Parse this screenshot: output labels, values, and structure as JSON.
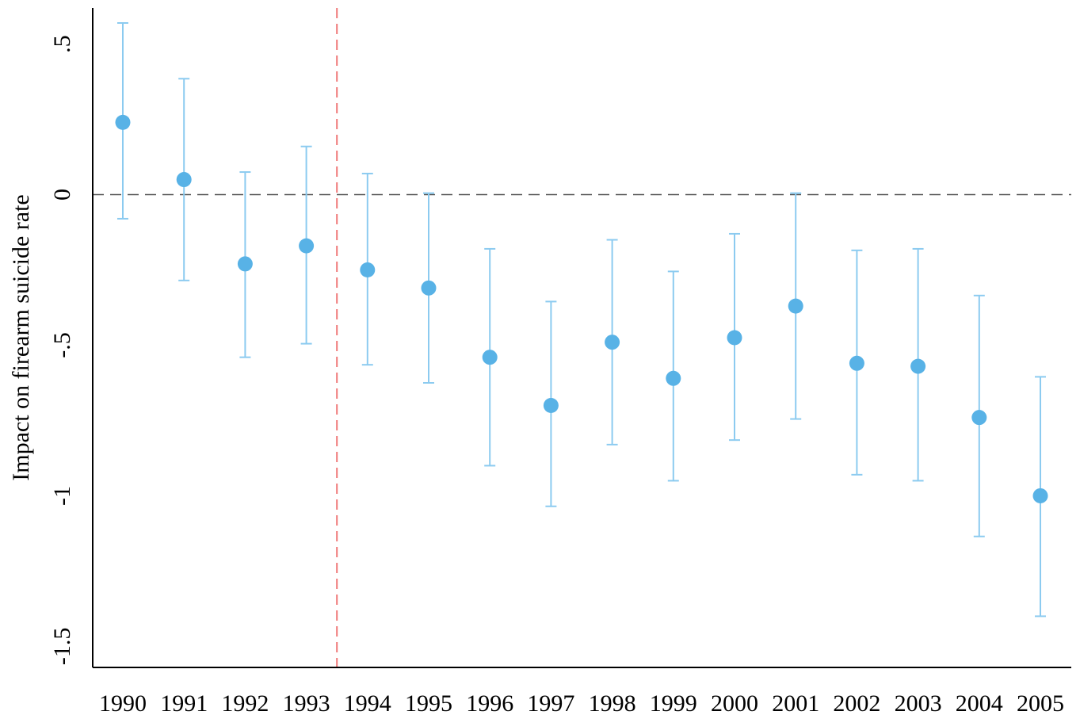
{
  "chart_data": {
    "type": "scatter",
    "title": "",
    "xlabel": "",
    "ylabel": "Impact on firearm suicide rate",
    "categories": [
      "1990",
      "1991",
      "1992",
      "1993",
      "1994",
      "1995",
      "1996",
      "1997",
      "1998",
      "1999",
      "2000",
      "2001",
      "2002",
      "2003",
      "2004",
      "2005"
    ],
    "values": [
      0.24,
      0.05,
      -0.23,
      -0.17,
      -0.25,
      -0.31,
      -0.54,
      -0.7,
      -0.49,
      -0.61,
      -0.475,
      -0.37,
      -0.56,
      -0.57,
      -0.74,
      -1.0
    ],
    "ci_low": [
      -0.08,
      -0.285,
      -0.54,
      -0.495,
      -0.565,
      -0.625,
      -0.9,
      -1.035,
      -0.83,
      -0.95,
      -0.815,
      -0.745,
      -0.93,
      -0.95,
      -1.135,
      -1.4
    ],
    "ci_high": [
      0.57,
      0.385,
      0.075,
      0.16,
      0.07,
      0.005,
      -0.18,
      -0.355,
      -0.15,
      -0.255,
      -0.13,
      0.005,
      -0.185,
      -0.18,
      -0.335,
      -0.605
    ],
    "ylim": [
      -1.57,
      0.62
    ],
    "yticks": [
      0.5,
      0,
      -0.5,
      -1,
      -1.5
    ],
    "ytick_labels": [
      ".5",
      "0",
      "-.5",
      "-1",
      "-1.5"
    ],
    "reference_lines": {
      "horizontal_y": 0,
      "vertical_between": [
        "1993",
        "1994"
      ]
    },
    "grid": false,
    "colors": {
      "marker": "#58b2e6",
      "error_bar": "#8ccbf0",
      "zero_line": "#555555",
      "vertical_line": "#f07a7a",
      "axis": "#000000"
    }
  }
}
